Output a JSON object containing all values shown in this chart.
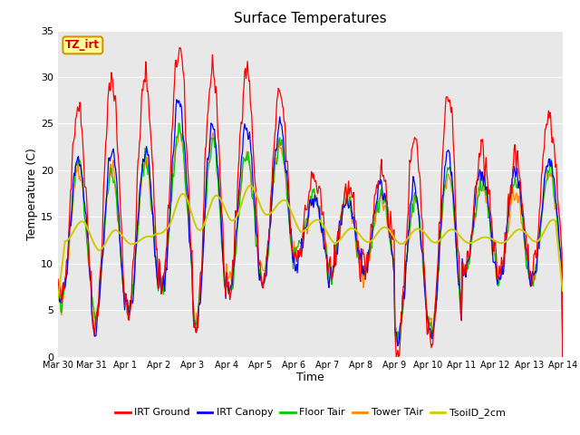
{
  "title": "Surface Temperatures",
  "xlabel": "Time",
  "ylabel": "Temperature (C)",
  "ylim": [
    0,
    35
  ],
  "plot_bg_color": "#e8e8e8",
  "legend_entries": [
    "IRT Ground",
    "IRT Canopy",
    "Floor Tair",
    "Tower TAir",
    "TsoilD_2cm"
  ],
  "legend_colors": [
    "#ff0000",
    "#0000ff",
    "#00cc00",
    "#ff8800",
    "#cccc00"
  ],
  "annotation_text": "TZ_irt",
  "annotation_box_color": "#ffff99",
  "annotation_box_edge": "#cc9900",
  "x_tick_labels": [
    "Mar 30",
    "Mar 31",
    "Apr 1",
    "Apr 2",
    "Apr 3",
    "Apr 4",
    "Apr 5",
    "Apr 6",
    "Apr 7",
    "Apr 8",
    "Apr 9",
    "Apr 10",
    "Apr 11",
    "Apr 12",
    "Apr 13",
    "Apr 14"
  ],
  "days": 15,
  "samples_per_day": 48
}
